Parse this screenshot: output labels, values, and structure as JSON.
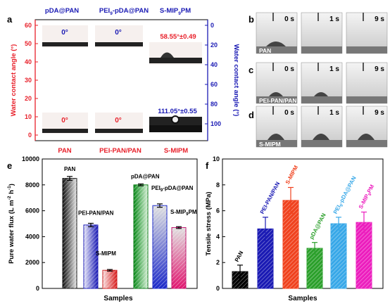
{
  "colors": {
    "left_axis": "#e8202a",
    "right_axis": "#1a1ab4",
    "black": "#000000",
    "pink": "#ec1ebe",
    "lightblue": "#38a8e8",
    "green": "#2ca02c",
    "orange": "#f0421e"
  },
  "panels": {
    "a": {
      "letter": "a",
      "top_labels": [
        "pDA@PAN",
        "PEI",
        "9",
        "-pDA@PAN",
        "S-MIP",
        "9",
        "PM"
      ],
      "bottom_labels": [
        "PAN",
        "PEI-PAN/PAN",
        "S-MIPM"
      ],
      "left_axis_label": "Water contact angle (°)",
      "right_axis_label": "Water contact angle (°)",
      "left_ticks": [
        "60",
        "50",
        "40",
        "30",
        "20",
        "10",
        "0"
      ],
      "right_ticks": [
        "0",
        "20",
        "40",
        "60",
        "80",
        "100"
      ],
      "angle_labels": {
        "pda_pan": "0°",
        "pei_pda_pan": "0°",
        "smip_pm": "58.55°±0.49",
        "pan": "0°",
        "pei_pan": "0°",
        "smipm": "111.05°±0.55"
      }
    },
    "b": {
      "letter": "b",
      "sample": "PAN",
      "times": [
        "0 s",
        "1 s",
        "9 s"
      ]
    },
    "c": {
      "letter": "c",
      "sample": "PEI-PAN/PAN",
      "times": [
        "0 s",
        "1 s",
        "9 s"
      ]
    },
    "d": {
      "letter": "d",
      "sample": "S-MIPM",
      "times": [
        "0 s",
        "1 s",
        "9 s"
      ]
    },
    "e": {
      "letter": "e"
    },
    "f": {
      "letter": "f"
    }
  },
  "chart_data": [
    {
      "panel": "e",
      "type": "bar",
      "xlabel": "Samples",
      "ylabel_parts": [
        "Pure water flux (L m",
        "-2",
        " h",
        "-1",
        ")"
      ],
      "ylim": [
        0,
        10000
      ],
      "yticks": [
        "0",
        "2000",
        "4000",
        "6000",
        "8000",
        "10000"
      ],
      "bars": [
        {
          "label": "PAN",
          "value": 8500,
          "err": 150
        },
        {
          "label": "PEI-PAN/PAN",
          "value": 4900,
          "err": 130
        },
        {
          "label": "S-MIPM",
          "value": 1400,
          "err": 60
        },
        {
          "label": "pDA@PAN",
          "value": 8000,
          "err": 70
        },
        {
          "label": "PEI-pDA@PAN",
          "value": 6400,
          "err": 130
        },
        {
          "label": "S-MIP PM",
          "value": 4700,
          "err": 70
        }
      ],
      "label_parts": [
        [
          "PAN"
        ],
        [
          "PEI-PAN/PAN"
        ],
        [
          "S-MIPM"
        ],
        [
          "pDA@PAN"
        ],
        [
          "PEI",
          "9",
          "-pDA@PAN"
        ],
        [
          "S-MIP",
          "9",
          "PM"
        ]
      ]
    },
    {
      "panel": "f",
      "type": "bar",
      "xlabel": "Samples",
      "ylabel": "Tensile stress (MPa)",
      "ylim": [
        0,
        10
      ],
      "yticks": [
        "0",
        "2",
        "4",
        "6",
        "8",
        "10"
      ],
      "bars": [
        {
          "label": "PAN",
          "value": 1.3,
          "err": 0.5,
          "color": "#000000"
        },
        {
          "label": "PEI-PAN/PAN",
          "value": 4.6,
          "err": 0.9,
          "color": "#1a1ab4"
        },
        {
          "label": "S-MIPM",
          "value": 6.8,
          "err": 1.0,
          "color": "#f0421e"
        },
        {
          "label": "pDA@PAN",
          "value": 3.1,
          "err": 0.45,
          "color": "#2ca02c"
        },
        {
          "label": "PEI-pDA@PAN",
          "value": 5.0,
          "err": 0.5,
          "color": "#38a8e8"
        },
        {
          "label": "S-MIP PM",
          "value": 5.1,
          "err": 0.8,
          "color": "#ec1ebe"
        }
      ],
      "label_parts": [
        [
          "PAN"
        ],
        [
          "PEI-PAN/PAN"
        ],
        [
          "S-MIPM"
        ],
        [
          "pDA@PAN"
        ],
        [
          "PEI",
          "9",
          "-pDA@PAN"
        ],
        [
          "S-MIP",
          "9",
          "PM"
        ]
      ]
    }
  ]
}
